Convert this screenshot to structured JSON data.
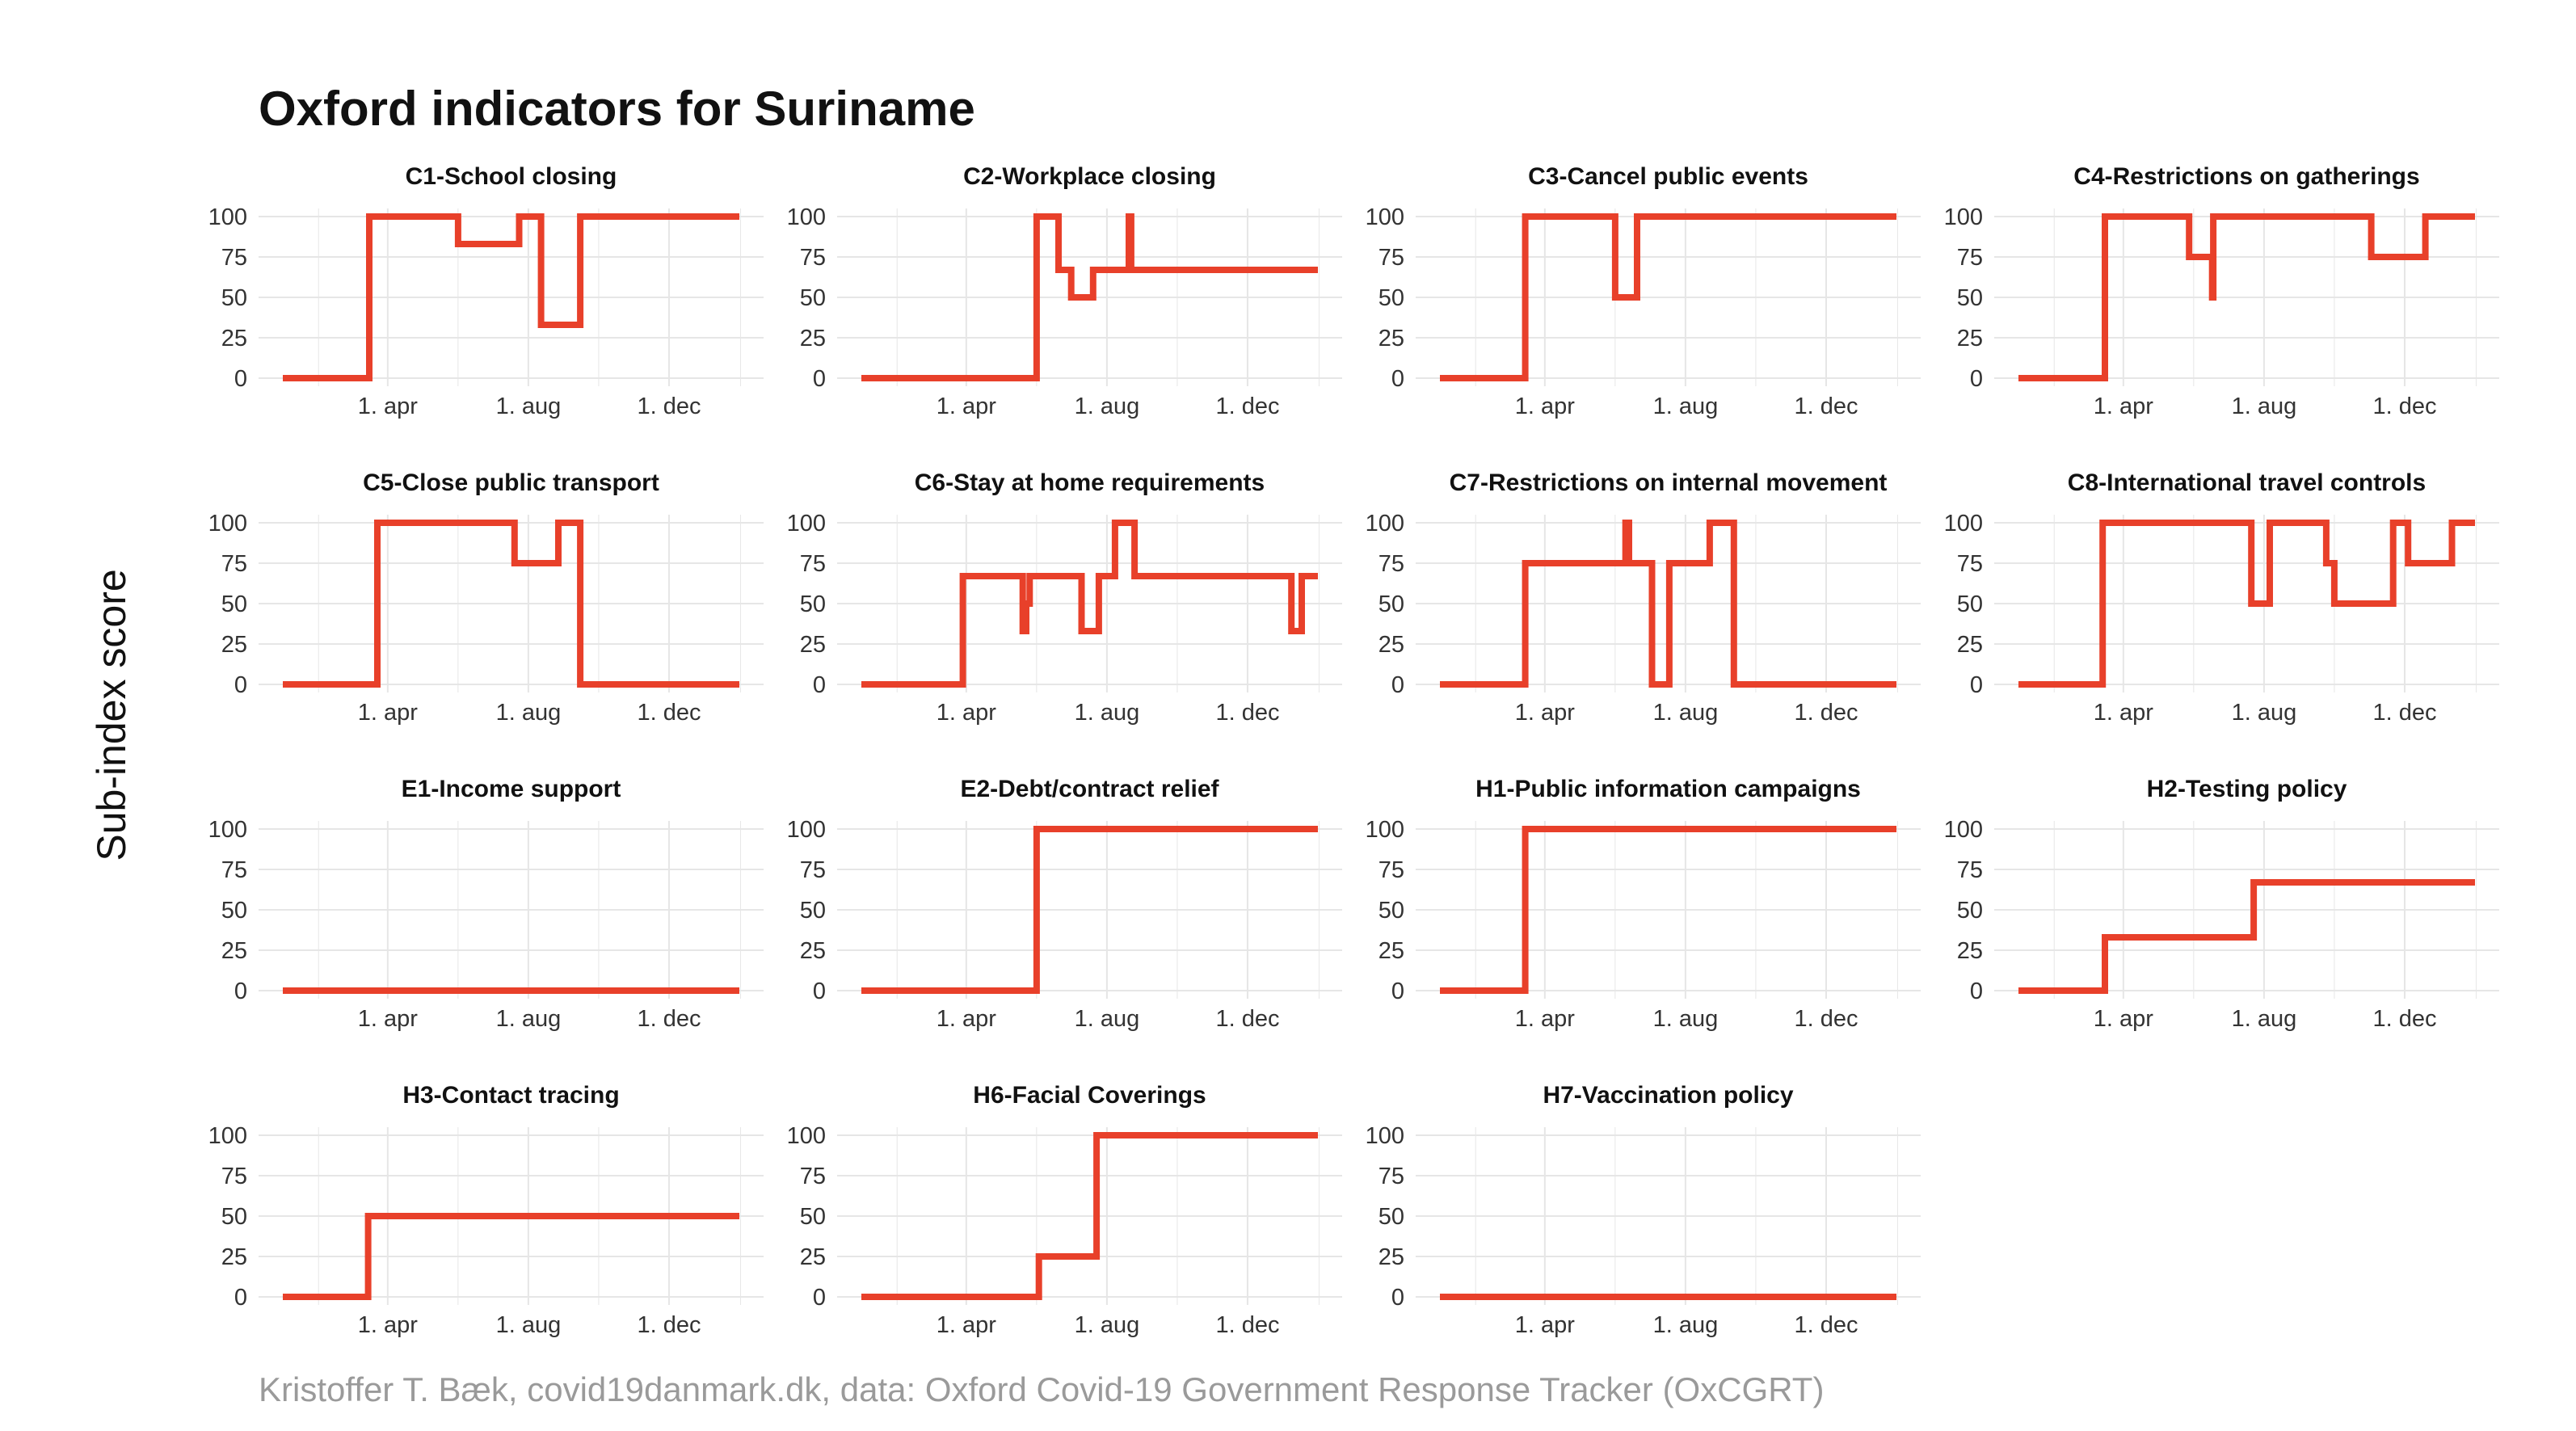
{
  "title": "Oxford indicators for Suriname",
  "y_axis_title": "Sub-index score",
  "caption": "Kristoffer T. Bæk, covid19danmark.dk, data: Oxford Covid-19 Government Response Tracker (OxCGRT)",
  "colors": {
    "line": "#e8402a",
    "grid": "#e6e6e6",
    "text": "#111111",
    "tick_text": "#333333",
    "caption": "#9a9a9a"
  },
  "chart_data": [
    {
      "type": "line",
      "title": "C1-School closing",
      "xlim": [
        "2020-01-01",
        "2021-01-31"
      ],
      "ylim": [
        0,
        100
      ],
      "yticks": [
        0,
        25,
        50,
        75,
        100
      ],
      "xticks": [
        "2020-04-01",
        "2020-08-01",
        "2020-12-01"
      ],
      "xtick_labels": [
        "1. apr",
        "1. aug",
        "1. dec"
      ],
      "grid": true,
      "series": [
        {
          "x": [
            "2020-01-01",
            "2020-03-16",
            "2020-06-01",
            "2020-07-24",
            "2020-08-12",
            "2020-09-15",
            "2020-11-27",
            "2021-01-31"
          ],
          "y": [
            0,
            100,
            83,
            100,
            33,
            100,
            100,
            100
          ]
        }
      ]
    },
    {
      "type": "line",
      "title": "C2-Workplace closing",
      "xlim": [
        "2020-01-01",
        "2021-01-31"
      ],
      "ylim": [
        0,
        100
      ],
      "yticks": [
        0,
        25,
        50,
        75,
        100
      ],
      "xticks": [
        "2020-04-01",
        "2020-08-01",
        "2020-12-01"
      ],
      "xtick_labels": [
        "1. apr",
        "1. aug",
        "1. dec"
      ],
      "grid": true,
      "series": [
        {
          "x": [
            "2020-01-01",
            "2020-06-01",
            "2020-06-20",
            "2020-07-01",
            "2020-07-20",
            "2020-08-20",
            "2020-08-22",
            "2020-08-25",
            "2021-01-31"
          ],
          "y": [
            0,
            100,
            67,
            50,
            67,
            100,
            67,
            67,
            67
          ]
        }
      ]
    },
    {
      "type": "line",
      "title": "C3-Cancel public events",
      "xlim": [
        "2020-01-01",
        "2021-01-31"
      ],
      "ylim": [
        0,
        100
      ],
      "yticks": [
        0,
        25,
        50,
        75,
        100
      ],
      "xticks": [
        "2020-04-01",
        "2020-08-01",
        "2020-12-01"
      ],
      "xtick_labels": [
        "1. apr",
        "1. aug",
        "1. dec"
      ],
      "grid": true,
      "series": [
        {
          "x": [
            "2020-01-01",
            "2020-03-15",
            "2020-06-01",
            "2020-06-20",
            "2021-01-31"
          ],
          "y": [
            0,
            100,
            50,
            100,
            100
          ]
        }
      ]
    },
    {
      "type": "line",
      "title": "C4-Restrictions on gatherings",
      "xlim": [
        "2020-01-01",
        "2021-01-31"
      ],
      "ylim": [
        0,
        100
      ],
      "yticks": [
        0,
        25,
        50,
        75,
        100
      ],
      "xticks": [
        "2020-04-01",
        "2020-08-01",
        "2020-12-01"
      ],
      "xtick_labels": [
        "1. apr",
        "1. aug",
        "1. dec"
      ],
      "grid": true,
      "series": [
        {
          "x": [
            "2020-01-01",
            "2020-03-16",
            "2020-05-28",
            "2020-06-17",
            "2020-06-18",
            "2020-11-02",
            "2020-12-19",
            "2021-01-31"
          ],
          "y": [
            0,
            100,
            75,
            50,
            100,
            75,
            100,
            100
          ]
        }
      ]
    },
    {
      "type": "line",
      "title": "C5-Close public transport",
      "xlim": [
        "2020-01-01",
        "2021-01-31"
      ],
      "ylim": [
        0,
        100
      ],
      "yticks": [
        0,
        25,
        50,
        75,
        100
      ],
      "xticks": [
        "2020-04-01",
        "2020-08-01",
        "2020-12-01"
      ],
      "xtick_labels": [
        "1. apr",
        "1. aug",
        "1. dec"
      ],
      "grid": true,
      "series": [
        {
          "x": [
            "2020-01-01",
            "2020-03-23",
            "2020-07-20",
            "2020-08-27",
            "2020-09-15",
            "2021-01-31"
          ],
          "y": [
            0,
            100,
            75,
            100,
            0,
            0
          ]
        }
      ]
    },
    {
      "type": "line",
      "title": "C6-Stay at home requirements",
      "xlim": [
        "2020-01-01",
        "2021-01-31"
      ],
      "ylim": [
        0,
        100
      ],
      "yticks": [
        0,
        25,
        50,
        75,
        100
      ],
      "xticks": [
        "2020-04-01",
        "2020-08-01",
        "2020-12-01"
      ],
      "xtick_labels": [
        "1. apr",
        "1. aug",
        "1. dec"
      ],
      "grid": true,
      "series": [
        {
          "x": [
            "2020-01-01",
            "2020-03-29",
            "2020-05-20",
            "2020-05-23",
            "2020-05-26",
            "2020-07-10",
            "2020-07-25",
            "2020-08-08",
            "2020-08-25",
            "2021-01-08",
            "2021-01-17",
            "2021-01-31"
          ],
          "y": [
            0,
            67,
            33,
            50,
            67,
            33,
            67,
            100,
            67,
            33,
            67,
            67
          ]
        }
      ]
    },
    {
      "type": "line",
      "title": "C7-Restrictions on internal movement",
      "xlim": [
        "2020-01-01",
        "2021-01-31"
      ],
      "ylim": [
        0,
        100
      ],
      "yticks": [
        0,
        25,
        50,
        75,
        100
      ],
      "xticks": [
        "2020-04-01",
        "2020-08-01",
        "2020-12-01"
      ],
      "xtick_labels": [
        "1. apr",
        "1. aug",
        "1. dec"
      ],
      "grid": true,
      "series": [
        {
          "x": [
            "2020-01-01",
            "2020-03-15",
            "2020-06-10",
            "2020-06-13",
            "2020-07-03",
            "2020-07-18",
            "2020-08-22",
            "2020-09-12",
            "2021-01-31"
          ],
          "y": [
            0,
            75,
            100,
            75,
            0,
            75,
            100,
            0,
            0
          ]
        }
      ]
    },
    {
      "type": "line",
      "title": "C8-International travel controls",
      "xlim": [
        "2020-01-01",
        "2021-01-31"
      ],
      "ylim": [
        0,
        100
      ],
      "yticks": [
        0,
        25,
        50,
        75,
        100
      ],
      "xticks": [
        "2020-04-01",
        "2020-08-01",
        "2020-12-01"
      ],
      "xtick_labels": [
        "1. apr",
        "1. aug",
        "1. dec"
      ],
      "grid": true,
      "series": [
        {
          "x": [
            "2020-01-01",
            "2020-03-14",
            "2020-07-21",
            "2020-08-06",
            "2020-09-24",
            "2020-10-01",
            "2020-11-21",
            "2020-12-04",
            "2021-01-11",
            "2021-01-31"
          ],
          "y": [
            0,
            100,
            50,
            100,
            75,
            50,
            100,
            75,
            100,
            100
          ]
        }
      ]
    },
    {
      "type": "line",
      "title": "E1-Income support",
      "xlim": [
        "2020-01-01",
        "2021-01-31"
      ],
      "ylim": [
        0,
        100
      ],
      "yticks": [
        0,
        25,
        50,
        75,
        100
      ],
      "xticks": [
        "2020-04-01",
        "2020-08-01",
        "2020-12-01"
      ],
      "xtick_labels": [
        "1. apr",
        "1. aug",
        "1. dec"
      ],
      "grid": true,
      "series": [
        {
          "x": [
            "2020-01-01",
            "2021-01-31"
          ],
          "y": [
            0,
            0
          ]
        }
      ]
    },
    {
      "type": "line",
      "title": "E2-Debt/contract relief",
      "xlim": [
        "2020-01-01",
        "2021-01-31"
      ],
      "ylim": [
        0,
        100
      ],
      "yticks": [
        0,
        25,
        50,
        75,
        100
      ],
      "xticks": [
        "2020-04-01",
        "2020-08-01",
        "2020-12-01"
      ],
      "xtick_labels": [
        "1. apr",
        "1. aug",
        "1. dec"
      ],
      "grid": true,
      "series": [
        {
          "x": [
            "2020-01-01",
            "2020-06-01",
            "2021-01-31"
          ],
          "y": [
            0,
            100,
            100
          ]
        }
      ]
    },
    {
      "type": "line",
      "title": "H1-Public information campaigns",
      "xlim": [
        "2020-01-01",
        "2021-01-31"
      ],
      "ylim": [
        0,
        100
      ],
      "yticks": [
        0,
        25,
        50,
        75,
        100
      ],
      "xticks": [
        "2020-04-01",
        "2020-08-01",
        "2020-12-01"
      ],
      "xtick_labels": [
        "1. apr",
        "1. aug",
        "1. dec"
      ],
      "grid": true,
      "series": [
        {
          "x": [
            "2020-01-01",
            "2020-03-15",
            "2021-01-31"
          ],
          "y": [
            0,
            100,
            100
          ]
        }
      ]
    },
    {
      "type": "line",
      "title": "H2-Testing policy",
      "xlim": [
        "2020-01-01",
        "2021-01-31"
      ],
      "ylim": [
        0,
        100
      ],
      "yticks": [
        0,
        25,
        50,
        75,
        100
      ],
      "xticks": [
        "2020-04-01",
        "2020-08-01",
        "2020-12-01"
      ],
      "xtick_labels": [
        "1. apr",
        "1. aug",
        "1. dec"
      ],
      "grid": true,
      "series": [
        {
          "x": [
            "2020-01-01",
            "2020-03-16",
            "2020-07-23",
            "2021-01-31"
          ],
          "y": [
            0,
            33,
            67,
            67
          ]
        }
      ]
    },
    {
      "type": "line",
      "title": "H3-Contact tracing",
      "xlim": [
        "2020-01-01",
        "2021-01-31"
      ],
      "ylim": [
        0,
        100
      ],
      "yticks": [
        0,
        25,
        50,
        75,
        100
      ],
      "xticks": [
        "2020-04-01",
        "2020-08-01",
        "2020-12-01"
      ],
      "xtick_labels": [
        "1. apr",
        "1. aug",
        "1. dec"
      ],
      "grid": true,
      "series": [
        {
          "x": [
            "2020-01-01",
            "2020-03-15",
            "2021-01-31"
          ],
          "y": [
            0,
            50,
            50
          ]
        }
      ]
    },
    {
      "type": "line",
      "title": "H6-Facial Coverings",
      "xlim": [
        "2020-01-01",
        "2021-01-31"
      ],
      "ylim": [
        0,
        100
      ],
      "yticks": [
        0,
        25,
        50,
        75,
        100
      ],
      "xticks": [
        "2020-04-01",
        "2020-08-01",
        "2020-12-01"
      ],
      "xtick_labels": [
        "1. apr",
        "1. aug",
        "1. dec"
      ],
      "grid": true,
      "series": [
        {
          "x": [
            "2020-01-01",
            "2020-06-03",
            "2020-07-23",
            "2021-01-31"
          ],
          "y": [
            0,
            25,
            100,
            100
          ]
        }
      ]
    },
    {
      "type": "line",
      "title": "H7-Vaccination policy",
      "xlim": [
        "2020-01-01",
        "2021-01-31"
      ],
      "ylim": [
        0,
        100
      ],
      "yticks": [
        0,
        25,
        50,
        75,
        100
      ],
      "xticks": [
        "2020-04-01",
        "2020-08-01",
        "2020-12-01"
      ],
      "xtick_labels": [
        "1. apr",
        "1. aug",
        "1. dec"
      ],
      "grid": true,
      "series": [
        {
          "x": [
            "2020-01-01",
            "2021-01-31"
          ],
          "y": [
            0,
            0
          ]
        }
      ]
    }
  ]
}
